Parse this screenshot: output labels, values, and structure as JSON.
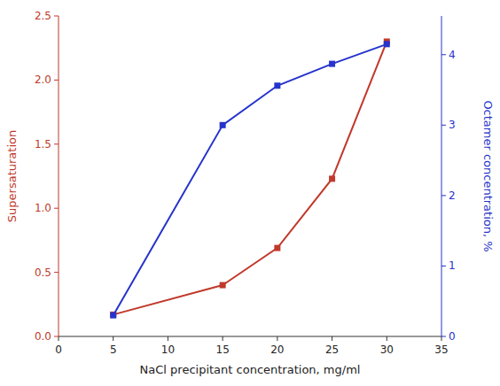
{
  "chart_data": {
    "type": "line",
    "x_label": "NaCl precipitant concentration, mg/ml",
    "y_label": "Supersaturation",
    "y2_label": "Octamer concentration, %",
    "x": [
      5,
      15,
      20,
      25,
      30
    ],
    "series": [
      {
        "color": "#c0392b",
        "marker": "square",
        "axis": "y",
        "values": [
          0.17,
          0.4,
          0.69,
          1.23,
          2.3
        ]
      },
      {
        "color": "#2633cc",
        "marker": "square",
        "axis": "y2",
        "values": [
          0.3,
          3.0,
          3.56,
          3.87,
          4.15
        ]
      }
    ],
    "xlim": [
      0,
      35
    ],
    "xticks": [
      0,
      5,
      10,
      15,
      20,
      25,
      30,
      35
    ],
    "ylim": [
      0.0,
      2.5
    ],
    "yticks": [
      {
        "value": 0.0,
        "label": "0.0"
      },
      0.5,
      {
        "value": 1.0,
        "label": "1.0"
      },
      1.5,
      {
        "value": 2.0,
        "label": "2.0"
      },
      2.5
    ],
    "y2lim": [
      0.0,
      4.55
    ],
    "y2ticks": [
      0,
      1,
      2,
      3,
      4
    ],
    "grid": false
  }
}
